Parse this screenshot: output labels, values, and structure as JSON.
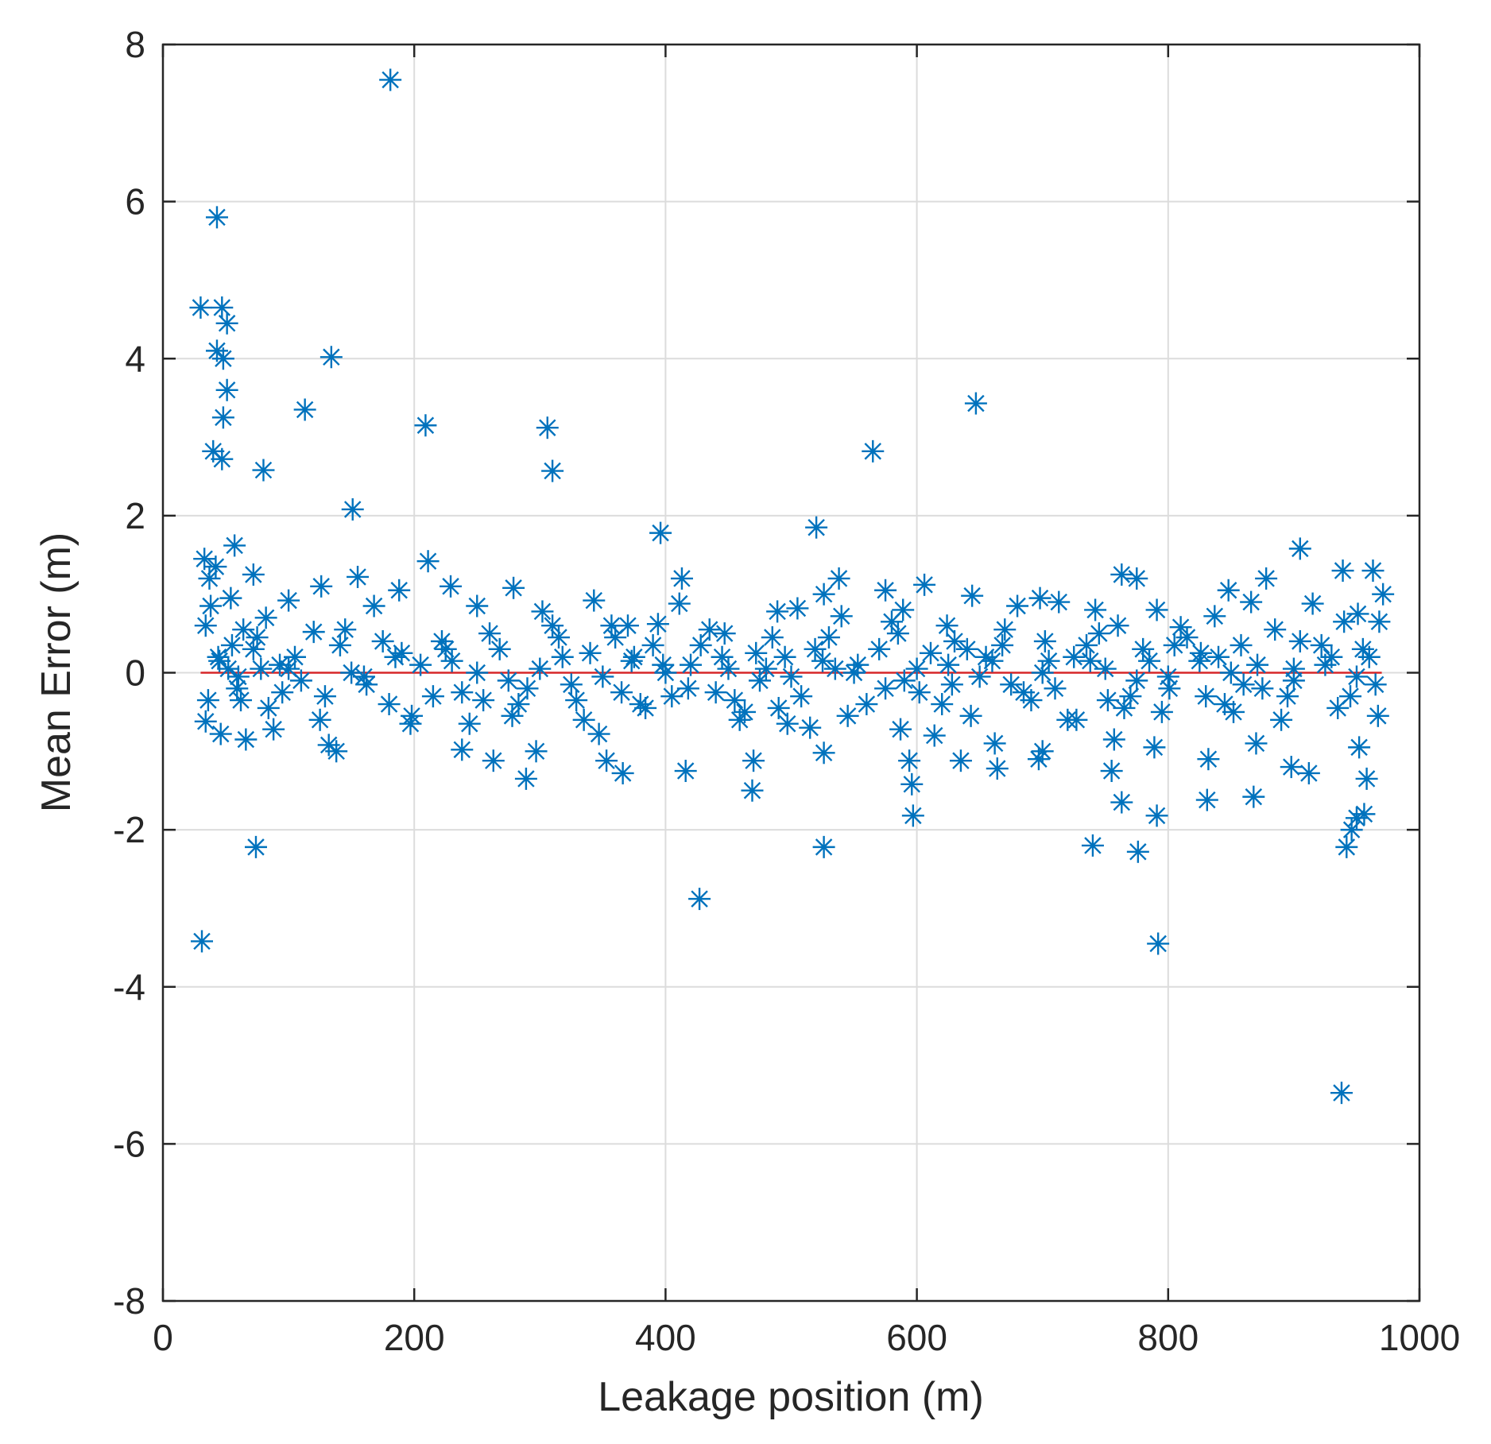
{
  "chart_data": {
    "type": "scatter",
    "title": "",
    "xlabel": "Leakage position (m)",
    "ylabel": "Mean Error (m)",
    "xlim": [
      0,
      1000
    ],
    "ylim": [
      -8,
      8
    ],
    "xticks": [
      0,
      200,
      400,
      600,
      800,
      1000
    ],
    "yticks": [
      -8,
      -6,
      -4,
      -2,
      0,
      2,
      4,
      6,
      8
    ],
    "grid": true,
    "legend": "none",
    "colors": {
      "marker": "#0072BD",
      "reference_line": "#D62728",
      "grid": "#DCDCDC",
      "axes": "#262626"
    },
    "marker": "asterisk",
    "reference_line": {
      "y": 0,
      "x_start": 30,
      "x_end": 970
    },
    "series": [
      {
        "points": [
          [
            181,
            7.55
          ],
          [
            43,
            5.8
          ],
          [
            30,
            4.65
          ],
          [
            47,
            4.65
          ],
          [
            51,
            4.45
          ],
          [
            43,
            4.1
          ],
          [
            48,
            4.0
          ],
          [
            134,
            4.02
          ],
          [
            51,
            3.6
          ],
          [
            48,
            3.25
          ],
          [
            113,
            3.35
          ],
          [
            40,
            2.82
          ],
          [
            47,
            2.72
          ],
          [
            80,
            2.58
          ],
          [
            209,
            3.15
          ],
          [
            306,
            3.12
          ],
          [
            310,
            2.57
          ],
          [
            647,
            3.43
          ],
          [
            565,
            2.82
          ],
          [
            151,
            2.08
          ],
          [
            396,
            1.78
          ],
          [
            520,
            1.85
          ],
          [
            905,
            1.58
          ],
          [
            33,
            1.45
          ],
          [
            57,
            1.62
          ],
          [
            42,
            1.35
          ],
          [
            37,
            1.2
          ],
          [
            72,
            1.25
          ],
          [
            155,
            1.22
          ],
          [
            211,
            1.42
          ],
          [
            229,
            1.1
          ],
          [
            126,
            1.1
          ],
          [
            188,
            1.05
          ],
          [
            279,
            1.08
          ],
          [
            413,
            1.2
          ],
          [
            526,
            1.0
          ],
          [
            538,
            1.2
          ],
          [
            575,
            1.05
          ],
          [
            606,
            1.12
          ],
          [
            644,
            0.98
          ],
          [
            698,
            0.95
          ],
          [
            763,
            1.25
          ],
          [
            775,
            1.2
          ],
          [
            848,
            1.05
          ],
          [
            878,
            1.2
          ],
          [
            939,
            1.3
          ],
          [
            963,
            1.3
          ],
          [
            971,
            1.0
          ],
          [
            54,
            0.95
          ],
          [
            100,
            0.92
          ],
          [
            34,
            0.6
          ],
          [
            64,
            0.55
          ],
          [
            82,
            0.7
          ],
          [
            120,
            0.52
          ],
          [
            168,
            0.85
          ],
          [
            250,
            0.85
          ],
          [
            302,
            0.78
          ],
          [
            343,
            0.92
          ],
          [
            357,
            0.6
          ],
          [
            394,
            0.62
          ],
          [
            411,
            0.88
          ],
          [
            447,
            0.5
          ],
          [
            489,
            0.78
          ],
          [
            505,
            0.82
          ],
          [
            540,
            0.72
          ],
          [
            589,
            0.8
          ],
          [
            624,
            0.6
          ],
          [
            680,
            0.85
          ],
          [
            713,
            0.9
          ],
          [
            742,
            0.8
          ],
          [
            791,
            0.8
          ],
          [
            810,
            0.58
          ],
          [
            837,
            0.72
          ],
          [
            866,
            0.9
          ],
          [
            915,
            0.88
          ],
          [
            951,
            0.75
          ],
          [
            44,
            0.2
          ],
          [
            72,
            0.3
          ],
          [
            93,
            0.1
          ],
          [
            141,
            0.35
          ],
          [
            185,
            0.2
          ],
          [
            222,
            0.4
          ],
          [
            268,
            0.3
          ],
          [
            318,
            0.2
          ],
          [
            373,
            0.15
          ],
          [
            428,
            0.35
          ],
          [
            472,
            0.25
          ],
          [
            519,
            0.3
          ],
          [
            553,
            0.1
          ],
          [
            611,
            0.25
          ],
          [
            655,
            0.2
          ],
          [
            702,
            0.4
          ],
          [
            738,
            0.15
          ],
          [
            780,
            0.3
          ],
          [
            826,
            0.25
          ],
          [
            871,
            0.1
          ],
          [
            922,
            0.35
          ],
          [
            960,
            0.2
          ],
          [
            36,
            -0.35
          ],
          [
            59,
            -0.2
          ],
          [
            84,
            -0.45
          ],
          [
            129,
            -0.3
          ],
          [
            162,
            -0.15
          ],
          [
            198,
            -0.55
          ],
          [
            238,
            -0.25
          ],
          [
            283,
            -0.4
          ],
          [
            329,
            -0.35
          ],
          [
            384,
            -0.45
          ],
          [
            418,
            -0.2
          ],
          [
            463,
            -0.5
          ],
          [
            508,
            -0.3
          ],
          [
            560,
            -0.4
          ],
          [
            602,
            -0.25
          ],
          [
            643,
            -0.55
          ],
          [
            691,
            -0.35
          ],
          [
            727,
            -0.6
          ],
          [
            765,
            -0.45
          ],
          [
            801,
            -0.2
          ],
          [
            852,
            -0.5
          ],
          [
            895,
            -0.3
          ],
          [
            935,
            -0.45
          ],
          [
            967,
            -0.55
          ],
          [
            34,
            -0.62
          ],
          [
            46,
            -0.78
          ],
          [
            66,
            -0.85
          ],
          [
            88,
            -0.72
          ],
          [
            132,
            -0.92
          ],
          [
            197,
            -0.65
          ],
          [
            244,
            -0.65
          ],
          [
            278,
            -0.55
          ],
          [
            347,
            -0.78
          ],
          [
            459,
            -0.6
          ],
          [
            497,
            -0.65
          ],
          [
            587,
            -0.72
          ],
          [
            614,
            -0.8
          ],
          [
            662,
            -0.9
          ],
          [
            700,
            -1.0
          ],
          [
            757,
            -0.85
          ],
          [
            789,
            -0.95
          ],
          [
            870,
            -0.9
          ],
          [
            952,
            -0.95
          ],
          [
            138,
            -1.0
          ],
          [
            238,
            -0.98
          ],
          [
            263,
            -1.12
          ],
          [
            297,
            -1.0
          ],
          [
            353,
            -1.12
          ],
          [
            366,
            -1.28
          ],
          [
            416,
            -1.25
          ],
          [
            470,
            -1.12
          ],
          [
            526,
            -1.02
          ],
          [
            594,
            -1.12
          ],
          [
            635,
            -1.12
          ],
          [
            664,
            -1.22
          ],
          [
            697,
            -1.1
          ],
          [
            755,
            -1.25
          ],
          [
            832,
            -1.1
          ],
          [
            898,
            -1.2
          ],
          [
            912,
            -1.28
          ],
          [
            289,
            -1.35
          ],
          [
            469,
            -1.5
          ],
          [
            596,
            -1.42
          ],
          [
            763,
            -1.65
          ],
          [
            831,
            -1.62
          ],
          [
            868,
            -1.58
          ],
          [
            958,
            -1.35
          ],
          [
            597,
            -1.82
          ],
          [
            791,
            -1.82
          ],
          [
            950,
            -1.85
          ],
          [
            956,
            -1.8
          ],
          [
            946,
            -2.0
          ],
          [
            74,
            -2.22
          ],
          [
            526,
            -2.22
          ],
          [
            740,
            -2.2
          ],
          [
            776,
            -2.28
          ],
          [
            942,
            -2.22
          ],
          [
            427,
            -2.88
          ],
          [
            31,
            -3.42
          ],
          [
            792,
            -3.45
          ],
          [
            938,
            -5.35
          ],
          [
            250,
            0.0
          ],
          [
            300,
            0.05
          ],
          [
            350,
            -0.05
          ],
          [
            400,
            0.0
          ],
          [
            450,
            0.05
          ],
          [
            500,
            -0.05
          ],
          [
            550,
            0.0
          ],
          [
            600,
            0.05
          ],
          [
            650,
            -0.05
          ],
          [
            700,
            0.0
          ],
          [
            750,
            0.05
          ],
          [
            800,
            -0.05
          ],
          [
            850,
            0.0
          ],
          [
            900,
            0.05
          ],
          [
            950,
            -0.05
          ],
          [
            150,
            0.0
          ],
          [
            100,
            0.05
          ],
          [
            60,
            -0.05
          ],
          [
            205,
            0.1
          ],
          [
            325,
            -0.15
          ],
          [
            375,
            0.2
          ],
          [
            475,
            -0.1
          ],
          [
            525,
            0.15
          ],
          [
            575,
            -0.2
          ],
          [
            625,
            0.1
          ],
          [
            675,
            -0.15
          ],
          [
            725,
            0.2
          ],
          [
            775,
            -0.1
          ],
          [
            825,
            0.15
          ],
          [
            875,
            -0.2
          ],
          [
            925,
            0.1
          ],
          [
            45,
            0.15
          ],
          [
            110,
            -0.1
          ],
          [
            175,
            0.4
          ],
          [
            215,
            -0.3
          ],
          [
            260,
            0.5
          ],
          [
            310,
            0.6
          ],
          [
            360,
            0.45
          ],
          [
            380,
            -0.4
          ],
          [
            405,
            -0.3
          ],
          [
            435,
            0.55
          ],
          [
            485,
            0.45
          ],
          [
            545,
            -0.55
          ],
          [
            580,
            0.65
          ],
          [
            630,
            0.4
          ],
          [
            670,
            0.55
          ],
          [
            720,
            -0.6
          ],
          [
            760,
            0.6
          ],
          [
            815,
            0.45
          ],
          [
            845,
            -0.4
          ],
          [
            885,
            0.55
          ],
          [
            940,
            0.65
          ],
          [
            965,
            -0.15
          ],
          [
            55,
            0.35
          ],
          [
            95,
            -0.25
          ],
          [
            145,
            0.55
          ],
          [
            230,
            0.15
          ],
          [
            275,
            -0.1
          ],
          [
            340,
            0.25
          ],
          [
            390,
            0.35
          ],
          [
            440,
            -0.25
          ],
          [
            480,
            0.05
          ],
          [
            530,
            0.45
          ],
          [
            590,
            -0.1
          ],
          [
            640,
            0.3
          ],
          [
            685,
            -0.25
          ],
          [
            735,
            0.35
          ],
          [
            770,
            -0.3
          ],
          [
            805,
            0.35
          ],
          [
            860,
            -0.15
          ],
          [
            905,
            0.4
          ],
          [
            955,
            0.3
          ],
          [
            38,
            0.85
          ],
          [
            52,
            0.05
          ],
          [
            75,
            0.45
          ],
          [
            125,
            -0.6
          ],
          [
            180,
            -0.4
          ],
          [
            225,
            0.3
          ],
          [
            290,
            -0.2
          ],
          [
            335,
            -0.6
          ],
          [
            370,
            0.6
          ],
          [
            420,
            0.1
          ],
          [
            455,
            -0.35
          ],
          [
            495,
            0.2
          ],
          [
            515,
            -0.7
          ],
          [
            570,
            0.3
          ],
          [
            620,
            -0.4
          ],
          [
            660,
            0.15
          ],
          [
            710,
            -0.2
          ],
          [
            745,
            0.5
          ],
          [
            795,
            -0.5
          ],
          [
            840,
            0.2
          ],
          [
            890,
            -0.6
          ],
          [
            930,
            0.2
          ],
          [
            968,
            0.65
          ],
          [
            62,
            -0.35
          ],
          [
            78,
            0.05
          ],
          [
            105,
            0.2
          ],
          [
            160,
            -0.05
          ],
          [
            190,
            0.25
          ],
          [
            255,
            -0.35
          ],
          [
            315,
            0.45
          ],
          [
            365,
            -0.25
          ],
          [
            398,
            0.1
          ],
          [
            445,
            0.2
          ],
          [
            490,
            -0.45
          ],
          [
            535,
            0.05
          ],
          [
            585,
            0.5
          ],
          [
            628,
            -0.15
          ],
          [
            668,
            0.35
          ],
          [
            705,
            0.15
          ],
          [
            752,
            -0.35
          ],
          [
            785,
            0.15
          ],
          [
            830,
            -0.3
          ],
          [
            858,
            0.35
          ],
          [
            900,
            -0.1
          ],
          [
            945,
            -0.3
          ]
        ]
      }
    ]
  }
}
